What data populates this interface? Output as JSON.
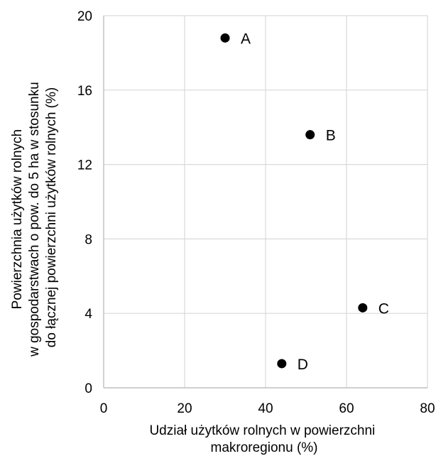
{
  "chart_data": {
    "type": "scatter",
    "title": "",
    "xlabel_lines": [
      "Udział użytków rolnych w powierzchni",
      "makroregionu (%)"
    ],
    "ylabel_lines": [
      "Powierzchnia użytków rolnych",
      "w gospodarstwach o pow. do 5 ha w stosunku",
      "do łącznej powierzchni użytków rolnych (%)"
    ],
    "xlim": [
      0,
      80
    ],
    "ylim": [
      0,
      20
    ],
    "xticks": [
      0,
      20,
      40,
      60,
      80
    ],
    "yticks": [
      0,
      4,
      8,
      12,
      16,
      20
    ],
    "grid": true,
    "legend": "none",
    "series": [
      {
        "points": [
          {
            "label": "A",
            "x": 30,
            "y": 18.8
          },
          {
            "label": "B",
            "x": 51,
            "y": 13.6
          },
          {
            "label": "C",
            "x": 64,
            "y": 4.3
          },
          {
            "label": "D",
            "x": 44,
            "y": 1.3
          }
        ]
      }
    ],
    "colors": {
      "marker": "#000000",
      "grid": "#d9d9d9",
      "axis": "#bfbfbf"
    }
  }
}
